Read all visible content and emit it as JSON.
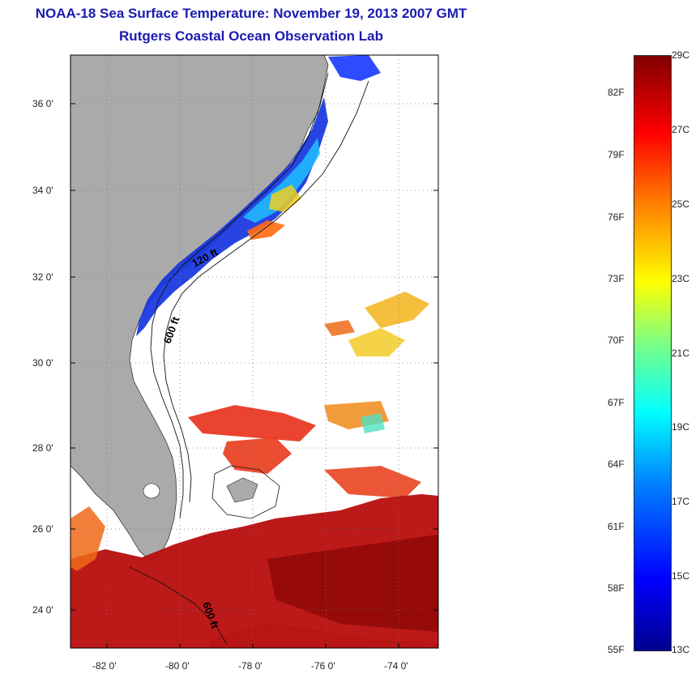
{
  "title": "NOAA-18 Sea Surface Temperature:  November 19, 2013 2007 GMT",
  "subtitle": "Rutgers Coastal Ocean Observation Lab",
  "lat_ticks": [
    "36 0'",
    "34 0'",
    "32 0'",
    "30 0'",
    "28 0'",
    "26 0'",
    "24 0'"
  ],
  "lon_ticks": [
    "-82 0'",
    "-80 0'",
    "-78 0'",
    "-76 0'",
    "-74 0'"
  ],
  "contour_labels": [
    "120 ft",
    "600 ft",
    "600 ft"
  ],
  "colorbar": {
    "celsius": [
      "29C",
      "27C",
      "25C",
      "23C",
      "21C",
      "19C",
      "17C",
      "15C",
      "13C"
    ],
    "fahrenheit": [
      "82F",
      "79F",
      "76F",
      "73F",
      "70F",
      "67F",
      "64F",
      "61F",
      "58F",
      "55F"
    ]
  },
  "colors": {
    "title": "#1b1bb0",
    "land": "#aaaaaa",
    "ocean_no_data": "#ffffff",
    "cold": "#0000c8",
    "warm": "#c80000",
    "hot": "#8c0000"
  }
}
